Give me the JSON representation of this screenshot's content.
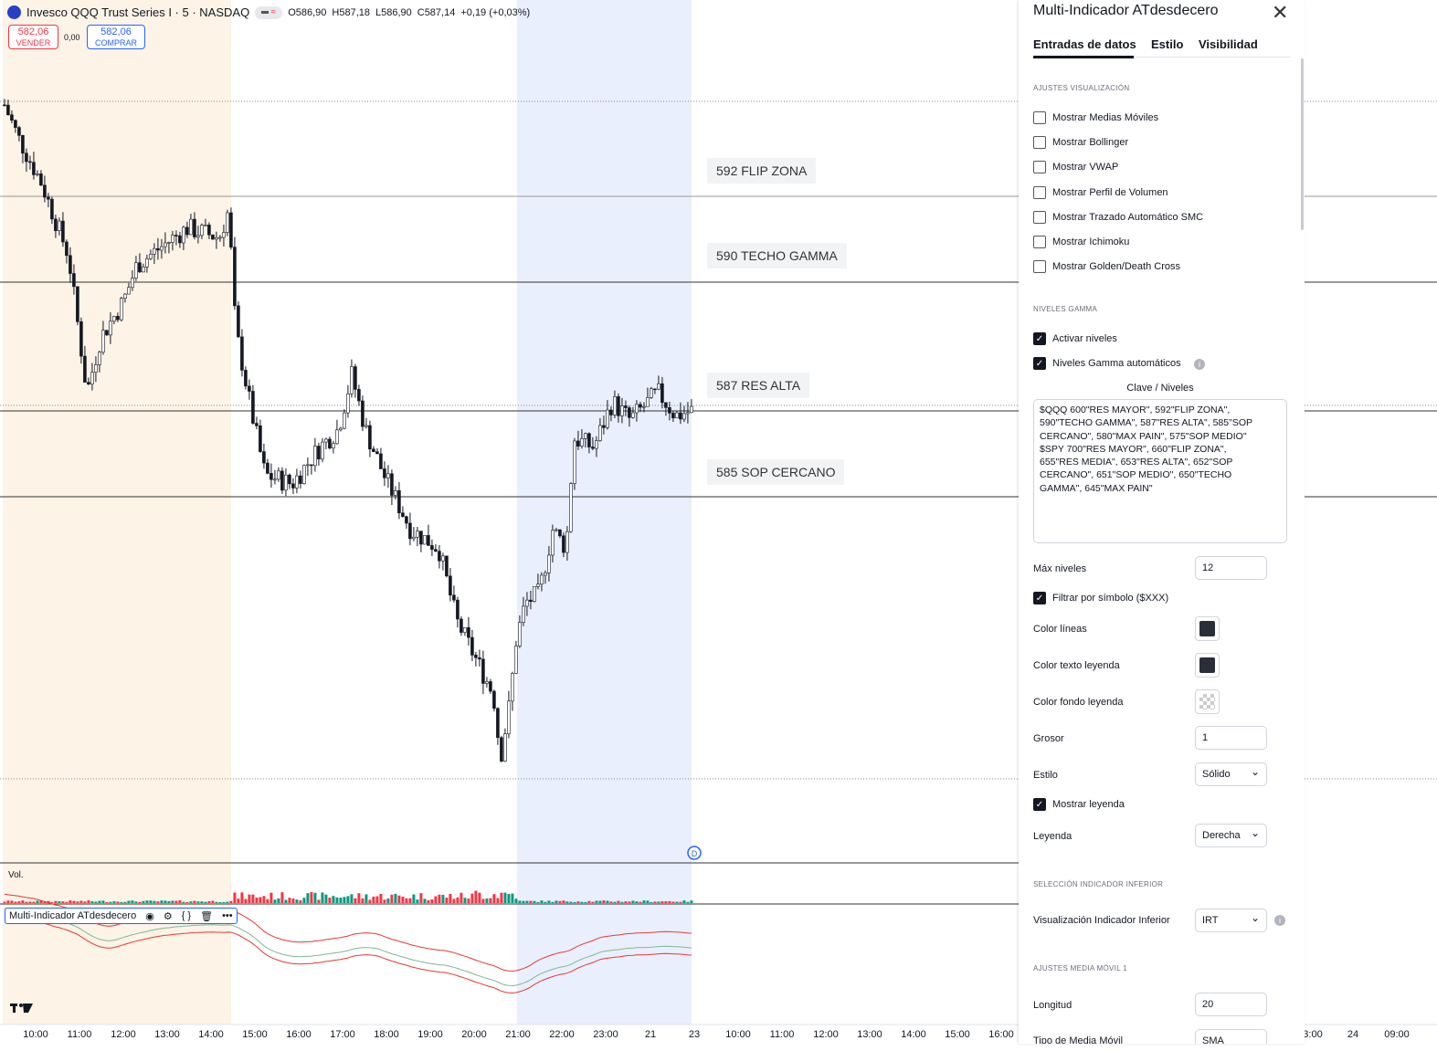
{
  "header": {
    "symbol": "Invesco QQQ Trust Series I · 5 · NASDAQ",
    "open": "O586,90",
    "high": "H587,18",
    "low": "L586,90",
    "close": "C587,14",
    "change": "+0,19 (+0,03%)"
  },
  "trade": {
    "sell_price": "582,06",
    "sell_label": "VENDER",
    "spread": "0,00",
    "buy_price": "582,06",
    "buy_label": "COMPRAR"
  },
  "levels": [
    {
      "price": 592,
      "label": "592 FLIP ZONA"
    },
    {
      "price": 590,
      "label": "590 TECHO GAMMA"
    },
    {
      "price": 587,
      "label": "587 RES ALTA"
    },
    {
      "price": 585,
      "label": "585 SOP CERCANO"
    }
  ],
  "price_path": [
    [
      9.29,
      594.13
    ],
    [
      9.6,
      593.38
    ],
    [
      10.13,
      592.32
    ],
    [
      10.75,
      590.62
    ],
    [
      11.17,
      587.43
    ],
    [
      11.48,
      588.7
    ],
    [
      12.0,
      589.55
    ],
    [
      12.31,
      590.4
    ],
    [
      13.15,
      591.04
    ],
    [
      13.46,
      591.26
    ],
    [
      14.19,
      591.04
    ],
    [
      14.4,
      591.68
    ],
    [
      14.56,
      588.91
    ],
    [
      14.92,
      587.0
    ],
    [
      15.23,
      585.51
    ],
    [
      15.85,
      585.3
    ],
    [
      16.48,
      586.15
    ],
    [
      16.9,
      586.57
    ],
    [
      17.21,
      587.85
    ],
    [
      17.52,
      586.57
    ],
    [
      17.94,
      585.51
    ],
    [
      18.56,
      584.23
    ],
    [
      19.19,
      583.81
    ],
    [
      19.6,
      582.11
    ],
    [
      20.02,
      581.26
    ],
    [
      20.44,
      580.4
    ],
    [
      20.6,
      578.91
    ],
    [
      20.81,
      580.19
    ],
    [
      20.96,
      581.68
    ],
    [
      21.17,
      582.53
    ],
    [
      21.48,
      582.74
    ],
    [
      21.79,
      584.23
    ],
    [
      22.1,
      583.81
    ],
    [
      22.27,
      586.36
    ],
    [
      22.73,
      586.15
    ],
    [
      23.15,
      587.21
    ],
    [
      23.56,
      586.79
    ],
    [
      24.19,
      587.43
    ],
    [
      24.6,
      586.89
    ],
    [
      24.96,
      587.0
    ]
  ],
  "colors": {
    "up": "#089981",
    "down": "#f23645",
    "session_pre": "#fdf3e6",
    "session_post": "#e9effc",
    "accent": "#2962ff"
  },
  "volume_label": "Vol.",
  "indicator": {
    "name": "Multi-Indicador ATdesdecero",
    "icons": [
      "eye-icon",
      "settings-icon",
      "source-code-icon",
      "trash-icon",
      "more-icon"
    ]
  },
  "time_axis": [
    "10:00",
    "11:00",
    "12:00",
    "13:00",
    "14:00",
    "15:00",
    "16:00",
    "17:00",
    "18:00",
    "19:00",
    "20:00",
    "21:00",
    "22:00",
    "23:00",
    "21",
    "23",
    "10:00",
    "11:00",
    "12:00",
    "13:00",
    "14:00",
    "15:00",
    "16:00",
    "3:00",
    "24",
    "09:00"
  ],
  "panel": {
    "title": "Multi-Indicador ATdesdecero",
    "tabs": [
      "Entradas de datos",
      "Estilo",
      "Visibilidad"
    ],
    "sec_visual": "AJUSTES VISUALIZACIÓN",
    "visual_options": [
      {
        "label": "Mostrar Medias Móviles",
        "checked": false
      },
      {
        "label": "Mostrar Bollinger",
        "checked": false
      },
      {
        "label": "Mostrar VWAP",
        "checked": false
      },
      {
        "label": "Mostrar Perfil de Volumen",
        "checked": false
      },
      {
        "label": "Mostrar Trazado Automático SMC",
        "checked": false
      },
      {
        "label": "Mostrar Ichimoku",
        "checked": false
      },
      {
        "label": "Mostrar Golden/Death Cross",
        "checked": false
      }
    ],
    "sec_gamma": "NIVELES GAMMA",
    "activar": "Activar niveles",
    "auto": "Niveles Gamma automáticos",
    "clave_label": "Clave / Niveles",
    "clave_value": "$QQQ 600\"RES MAYOR\", 592\"FLIP ZONA\",\n590\"TECHO GAMMA\", 587\"RES ALTA\", 585\"SOP\nCERCANO\", 580\"MAX PAIN\", 575\"SOP MEDIO\"\n$SPY 700\"RES MAYOR\", 660\"FLIP ZONA\",\n655\"RES MEDIA\", 653\"RES ALTA\", 652\"SOP\nCERCANO\", 651\"SOP MEDIO\", 650\"TECHO\nGAMMA\", 645\"MAX PAIN\"",
    "max_label": "Máx niveles",
    "max_value": "12",
    "filtrar": "Filtrar por símbolo ($XXX)",
    "color_lineas": "Color líneas",
    "color_lineas_value": "#2a2e39",
    "color_texto": "Color texto leyenda",
    "color_texto_value": "#2a2e39",
    "color_fondo": "Color fondo leyenda",
    "grosor_label": "Grosor",
    "grosor_value": "1",
    "estilo_label": "Estilo",
    "estilo_value": "Sólido",
    "mostrar_leyenda": "Mostrar leyenda",
    "leyenda_label": "Leyenda",
    "leyenda_value": "Derecha",
    "sec_inferior": "SELECCIÓN INDICADOR INFERIOR",
    "vis_inf_label": "Visualización Indicador Inferior",
    "vis_inf_value": "IRT",
    "sec_ma1": "AJUSTES MEDIA MÓVIL 1",
    "longitud_label": "Longitud",
    "longitud_value": "20",
    "tipo_label": "Tipo de Media Móvil",
    "tipo_value": "SMA"
  }
}
